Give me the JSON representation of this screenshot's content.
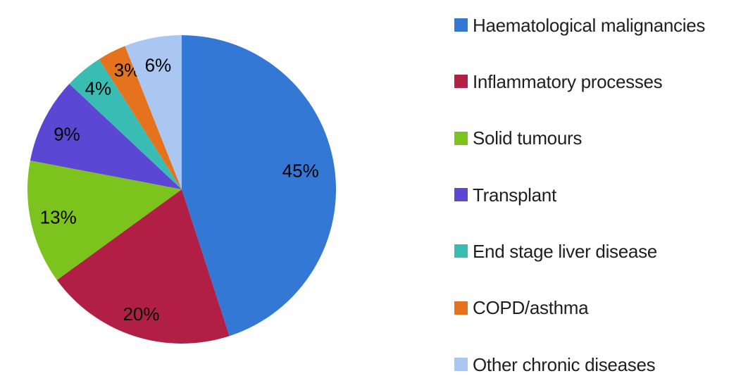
{
  "chart_data": {
    "type": "pie",
    "title": "",
    "categories": [
      "Haematological malignancies",
      "Inflammatory processes",
      "Solid tumours",
      "Transplant",
      "End stage liver disease",
      "COPD/asthma",
      "Other chronic diseases"
    ],
    "values": [
      45,
      20,
      13,
      9,
      4,
      3,
      6
    ],
    "slice_labels": [
      "45%",
      "20%",
      "13%",
      "9%",
      "4%",
      "3%",
      "6%"
    ],
    "colors": [
      "#3378d4",
      "#b21f44",
      "#7cc31d",
      "#5c47d4",
      "#39bcb4",
      "#e5721d",
      "#a9c7f1"
    ],
    "start_angle_deg": 0,
    "direction": "clockwise",
    "legend_position": "right",
    "slice_label_color": "#000000",
    "legend_text_color": "#1f1f1f",
    "background_color": "#ffffff"
  }
}
